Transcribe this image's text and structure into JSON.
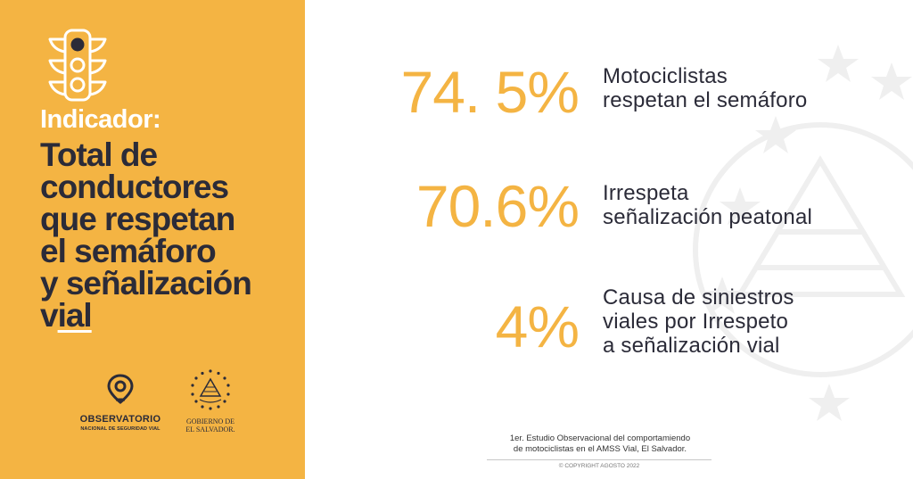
{
  "sidebar": {
    "icon": "traffic-light-icon",
    "background_color": "#F4B443",
    "indicator_label": "Indicador:",
    "title_lines": [
      "Total de",
      "conductores",
      "que respetan",
      "el semáforo",
      "y señalización"
    ],
    "last_line": {
      "plain": "v",
      "underlined": "ial"
    },
    "logos": {
      "observatorio": {
        "icon": "location-pin-logo",
        "name": "OBSERVATORIO",
        "subname": "NACIONAL DE SEGURIDAD VIAL"
      },
      "gobierno": {
        "icon": "coat-of-arms-logo",
        "line1": "GOBIERNO DE",
        "line2": "EL SALVADOR."
      }
    }
  },
  "stats": [
    {
      "value": "74. 5%",
      "desc_lines": [
        "Motociclistas",
        "respetan el semáforo"
      ]
    },
    {
      "value": "70.6%",
      "desc_lines": [
        "Irrespeta",
        "señalización peatonal"
      ]
    },
    {
      "value": "4%",
      "desc_lines": [
        "Causa de siniestros",
        "viales por Irrespeto",
        "a señalización vial"
      ]
    }
  ],
  "footer": {
    "line1": "1er. Estudio Observacional  del comportamiendo",
    "line2": "de motociclistas en el AMSS Vial, El Salvador.",
    "copyright": "© COPYRIGHT AGOSTO 2022"
  },
  "colors": {
    "accent": "#F4B443",
    "text": "#2b2b38"
  }
}
